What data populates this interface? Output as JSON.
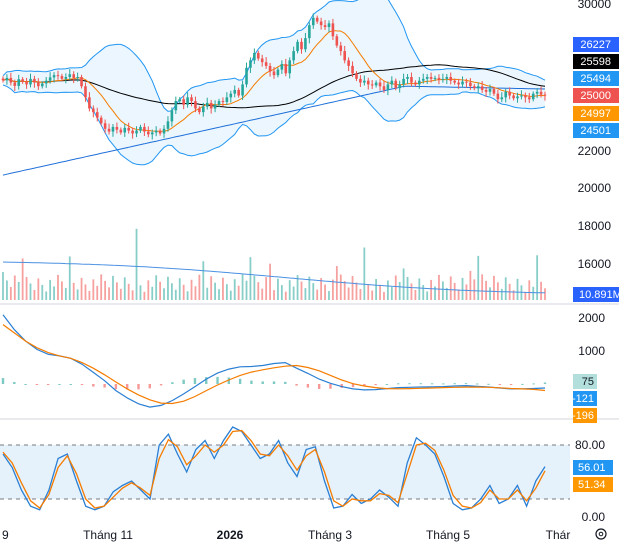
{
  "theme": {
    "up": "#26a69a",
    "down": "#ef5350",
    "bollinger": "#2196f3",
    "bollinger_fill": "#e3f2fd",
    "ma_fast": "#f57c00",
    "ma_slow": "#000000",
    "ma_long": "#1e6fd9",
    "macd": "#2a7fd4",
    "signal": "#f57c00",
    "volume_ma": "#4a90e2",
    "stoch_k": "#2a7fd4",
    "stoch_d": "#f57c00",
    "stoch_band": "#e6f2fb",
    "divider": "#d1d4dc",
    "grid_dash": "#787b86"
  },
  "x_axis": {
    "labels": [
      "9",
      "Tháng 11",
      "2026",
      "Tháng 3",
      "Tháng 5",
      "Thár"
    ]
  },
  "price_axis": {
    "ticks": [
      "30000",
      "22000",
      "20000",
      "18000",
      "16000"
    ]
  },
  "price_badges": [
    {
      "text": "26227",
      "bg": "#2962ff",
      "fg": "#ffffff"
    },
    {
      "text": "25598",
      "bg": "#000000",
      "fg": "#ffffff"
    },
    {
      "text": "25494",
      "bg": "#2196f3",
      "fg": "#ffffff"
    },
    {
      "text": "25000",
      "bg": "#ef5350",
      "fg": "#ffffff"
    },
    {
      "text": "24997",
      "bg": "#ff9800",
      "fg": "#ffffff"
    },
    {
      "text": "24501",
      "bg": "#2196f3",
      "fg": "#ffffff"
    }
  ],
  "volume_badge": {
    "text": "10.891M",
    "bg": "#2962ff",
    "fg": "#ffffff"
  },
  "macd_axis": {
    "ticks": [
      "2000",
      "1000"
    ]
  },
  "macd_badges": [
    {
      "text": "75",
      "bg": "#b2dfdb",
      "fg": "#131722"
    },
    {
      "text": "-121",
      "bg": "#2196f3",
      "fg": "#ffffff"
    },
    {
      "text": "-196",
      "bg": "#ff9800",
      "fg": "#ffffff"
    }
  ],
  "stoch_axis": {
    "ticks": [
      "80.00",
      "0.00"
    ],
    "upper_band": 80,
    "lower_band": 20
  },
  "stoch_badges": [
    {
      "text": "56.01",
      "bg": "#2196f3",
      "fg": "#ffffff"
    },
    {
      "text": "51.34",
      "bg": "#ff9800",
      "fg": "#ffffff"
    }
  ],
  "settings_icon": "gear-icon",
  "chart_data": [
    {
      "type": "candlestick",
      "panel": "price",
      "ylim": [
        20000,
        30000
      ],
      "closes": [
        25820,
        25950,
        25700,
        25520,
        25880,
        25750,
        25600,
        25900,
        25700,
        25500,
        25650,
        25800,
        25980,
        26100,
        26050,
        25900,
        26000,
        26150,
        25950,
        26000,
        25500,
        24900,
        24300,
        24100,
        23800,
        23500,
        23200,
        23050,
        23300,
        23150,
        23000,
        23250,
        23100,
        22950,
        23100,
        23300,
        23050,
        22900,
        23000,
        23100,
        22950,
        23200,
        23600,
        24200,
        24700,
        24800,
        24500,
        24900,
        24700,
        24300,
        24100,
        24400,
        24600,
        24300,
        24500,
        24700,
        24650,
        24900,
        25100,
        25300,
        25000,
        25600,
        26500,
        26900,
        27300,
        27000,
        26800,
        26600,
        26300,
        26100,
        26400,
        26700,
        26200,
        26900,
        27400,
        27900,
        27500,
        28100,
        28800,
        29200,
        29000,
        28800,
        28700,
        28900,
        28200,
        27700,
        27400,
        26900,
        26600,
        26200,
        25900,
        25700,
        25800,
        25600,
        25550,
        25700,
        25500,
        25300,
        25600,
        25800,
        25400,
        25600,
        25900,
        26000,
        25700,
        25600,
        25800,
        25900,
        26000,
        25900,
        25950,
        25850,
        25900,
        26000,
        25800,
        25700,
        25600,
        25750,
        25700,
        25500,
        25400,
        25500,
        25300,
        25200,
        25350,
        25100,
        24800,
        24900,
        25200,
        25000,
        24850,
        24950,
        25000,
        24900,
        24800,
        25100,
        25200,
        25050,
        25000
      ],
      "volume_ma_trend": "declining"
    },
    {
      "type": "line",
      "panel": "macd",
      "series": [
        {
          "name": "MACD",
          "values": [
            2100,
            1650,
            1300,
            1050,
            900,
            850,
            780,
            600,
            350,
            100,
            -200,
            -420,
            -600,
            -700,
            -650,
            -500,
            -300,
            -80,
            150,
            330,
            450,
            520,
            530,
            560,
            620,
            650,
            480,
            320,
            150,
            20,
            -80,
            -150,
            -180,
            -170,
            -140,
            -110,
            -100,
            -90,
            -85,
            -80,
            -60,
            -50,
            -70,
            -90,
            -120,
            -150,
            -145,
            -135,
            -121
          ]
        },
        {
          "name": "Signal",
          "values": [
            1800,
            1550,
            1300,
            1100,
            950,
            850,
            780,
            650,
            480,
            280,
            60,
            -150,
            -330,
            -480,
            -580,
            -590,
            -520,
            -380,
            -200,
            -30,
            120,
            260,
            360,
            430,
            490,
            540,
            560,
            500,
            400,
            260,
            120,
            10,
            -60,
            -110,
            -140,
            -145,
            -140,
            -130,
            -120,
            -110,
            -100,
            -95,
            -95,
            -100,
            -115,
            -135,
            -150,
            -165,
            -196
          ]
        }
      ],
      "histogram_latest": 75
    },
    {
      "type": "line",
      "panel": "stochastic",
      "ylim": [
        0,
        100
      ],
      "series": [
        {
          "name": "%K",
          "values": [
            70,
            55,
            30,
            12,
            8,
            30,
            65,
            70,
            40,
            12,
            8,
            12,
            28,
            35,
            40,
            30,
            20,
            80,
            92,
            70,
            50,
            75,
            85,
            65,
            85,
            100,
            95,
            80,
            65,
            70,
            85,
            60,
            45,
            75,
            78,
            40,
            10,
            12,
            25,
            15,
            20,
            30,
            22,
            12,
            60,
            88,
            80,
            70,
            45,
            15,
            8,
            10,
            20,
            35,
            15,
            20,
            35,
            12,
            40,
            56
          ]
        },
        {
          "name": "%D",
          "values": [
            72,
            60,
            38,
            18,
            10,
            25,
            55,
            68,
            48,
            20,
            10,
            12,
            22,
            32,
            38,
            32,
            24,
            65,
            86,
            78,
            58,
            68,
            80,
            72,
            80,
            95,
            96,
            85,
            70,
            68,
            80,
            68,
            52,
            68,
            75,
            50,
            18,
            12,
            20,
            18,
            18,
            26,
            24,
            16,
            48,
            80,
            82,
            74,
            52,
            24,
            12,
            10,
            16,
            30,
            20,
            20,
            30,
            18,
            32,
            51.34
          ]
        }
      ]
    }
  ]
}
